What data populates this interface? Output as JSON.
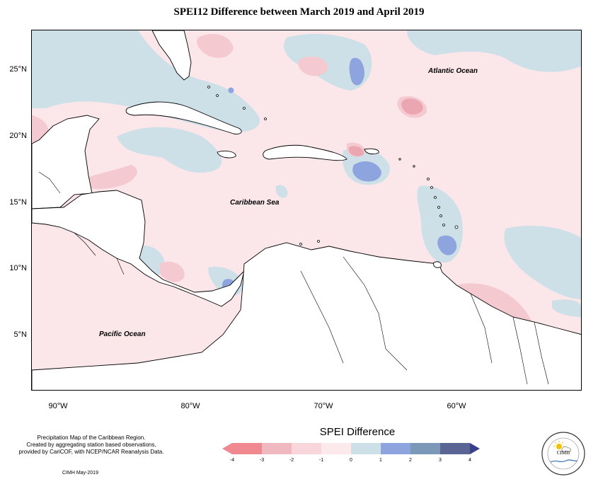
{
  "title": "SPEI12 Difference between March 2019 and April 2019",
  "map_labels": {
    "atlantic": "Atlantic Ocean",
    "caribbean": "Caribbean Sea",
    "pacific": "Pacific Ocean"
  },
  "lat_ticks": [
    "25°N",
    "20°N",
    "15°N",
    "10°N",
    "5°N"
  ],
  "lon_ticks": [
    "90°W",
    "80°W",
    "70°W",
    "60°W"
  ],
  "legend": {
    "title": "SPEI Difference",
    "ticks": [
      "-4",
      "-3",
      "-2",
      "-1",
      "0",
      "1",
      "2",
      "3",
      "4"
    ],
    "colors": [
      "#f08890",
      "#f0b8bf",
      "#f9d6dc",
      "#fce9ec",
      "#cde0e8",
      "#8ea4df",
      "#7b98b8",
      "#5a6593",
      "#3a3f8c"
    ]
  },
  "note": {
    "line1": "Precipitation Map of the Caribbean Region.",
    "line2": "Created by aggregating station based observations,",
    "line3": "provided by CariCOF, with NCEP/NCAR Reanalysis Data."
  },
  "credit": "CIMH May-2019",
  "logo": {
    "text": "CIMH",
    "icon": "cimh-logo-icon"
  }
}
